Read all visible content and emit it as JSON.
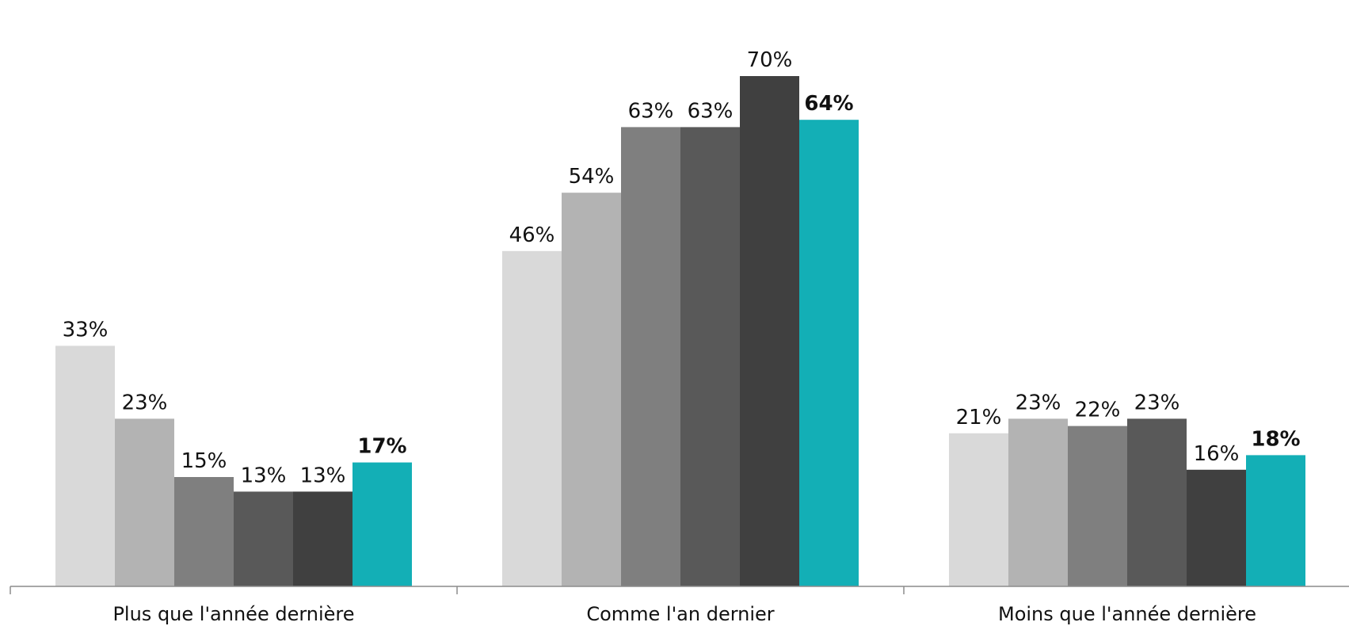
{
  "chart_data": {
    "type": "bar",
    "categories": [
      "Plus que l'année dernière",
      "Comme l'an dernier",
      "Moins que l'année dernière"
    ],
    "series": [
      {
        "values": [
          33,
          46,
          21
        ],
        "color": "#d9d9d9"
      },
      {
        "values": [
          23,
          54,
          23
        ],
        "color": "#b3b3b3"
      },
      {
        "values": [
          15,
          63,
          22
        ],
        "color": "#7f7f7f"
      },
      {
        "values": [
          13,
          63,
          23
        ],
        "color": "#595959"
      },
      {
        "values": [
          13,
          70,
          16
        ],
        "color": "#404040"
      },
      {
        "values": [
          17,
          64,
          18
        ],
        "color": "#13afb6",
        "bold_labels": true
      }
    ],
    "value_suffix": "%",
    "ylim": [
      0,
      75
    ],
    "grid": false,
    "legend": "none",
    "title": "",
    "xlabel": "",
    "ylabel": ""
  }
}
